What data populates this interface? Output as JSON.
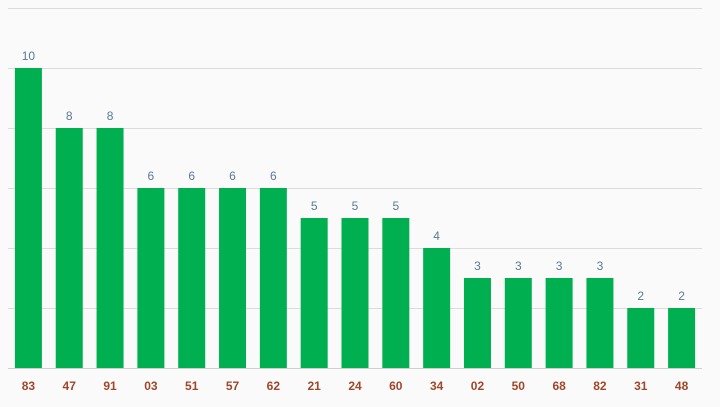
{
  "chart_data": {
    "type": "bar",
    "categories": [
      "83",
      "47",
      "91",
      "03",
      "51",
      "57",
      "62",
      "21",
      "24",
      "60",
      "34",
      "02",
      "50",
      "68",
      "82",
      "31",
      "48"
    ],
    "values": [
      10,
      8,
      8,
      6,
      6,
      6,
      6,
      5,
      5,
      5,
      4,
      3,
      3,
      3,
      3,
      2,
      2
    ],
    "title": "",
    "xlabel": "",
    "ylabel": "",
    "ylim": [
      0,
      12
    ],
    "grid": true,
    "data_labels": true,
    "legend": "none"
  },
  "colors": {
    "bar": "#00b050",
    "value_label": "#5a7a9a",
    "category_label": "#a0472a",
    "background": "#fafafa"
  }
}
